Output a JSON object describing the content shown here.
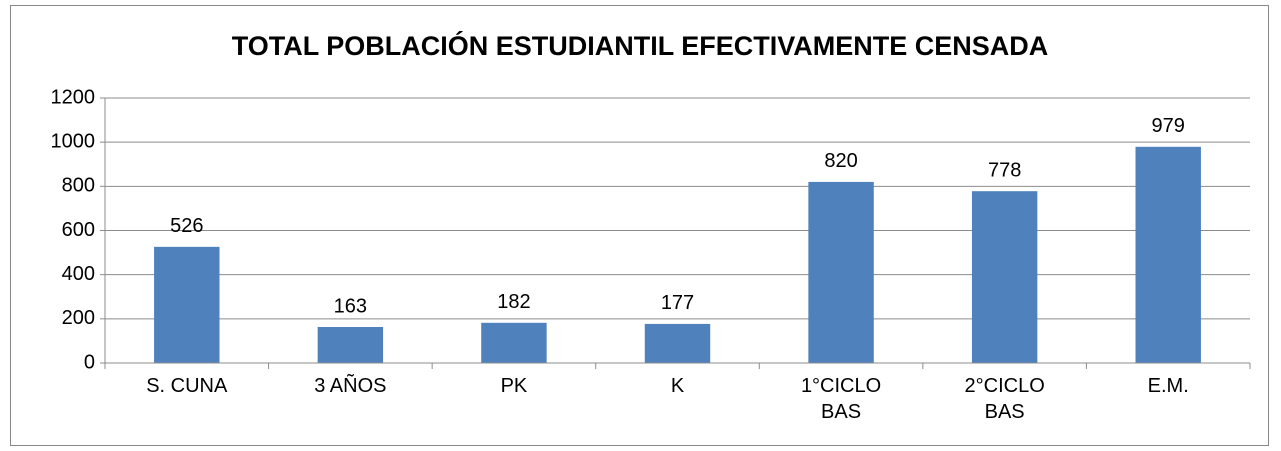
{
  "chart_data": {
    "type": "bar",
    "title": "TOTAL POBLACIÓN  ESTUDIANTIL EFECTIVAMENTE CENSADA",
    "categories": [
      "S. CUNA",
      "3 AÑOS",
      "PK",
      "K",
      "1°CICLO BAS",
      "2°CICLO BAS",
      "E.M."
    ],
    "values": [
      526,
      163,
      182,
      177,
      820,
      778,
      979
    ],
    "color": "#4f81bd",
    "ylim": [
      0,
      1200
    ],
    "yticks": [
      0,
      200,
      400,
      600,
      800,
      1000,
      1200
    ],
    "grid": true
  }
}
